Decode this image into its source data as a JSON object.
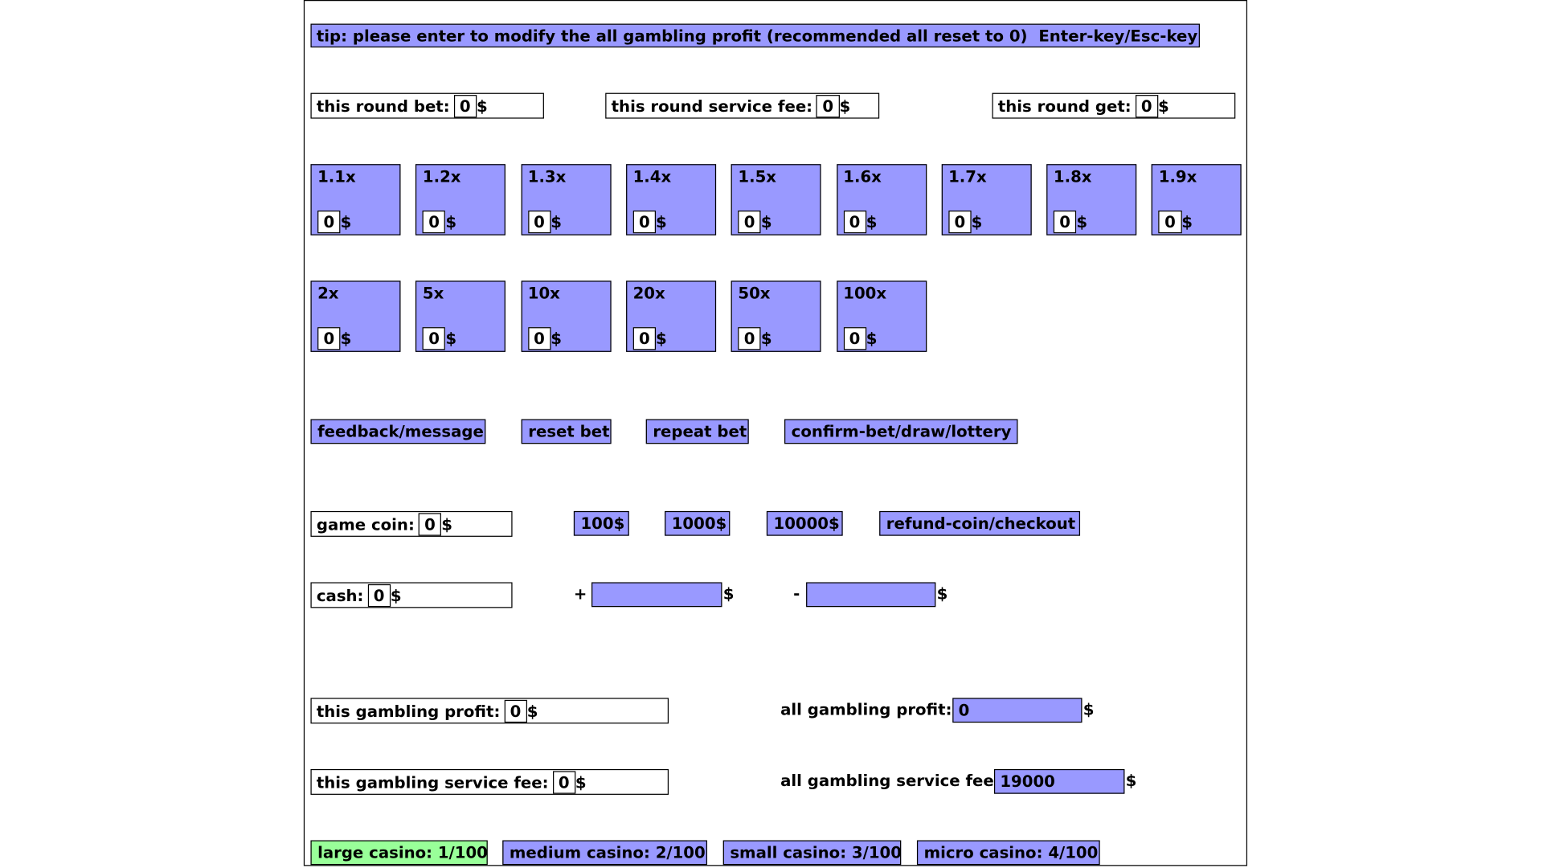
{
  "colors": {
    "accent": "#9999ff",
    "selected": "#99ff99"
  },
  "tip": {
    "text": "tip: please enter to modify the all gambling profit (recommended all reset to 0)",
    "keys": "Enter-key/Esc-key"
  },
  "round": {
    "bet_label": "this round bet:",
    "bet_value": "0",
    "fee_label": "this round service fee:",
    "fee_value": "0",
    "get_label": "this round get:",
    "get_value": "0",
    "currency": "$"
  },
  "multipliers": [
    {
      "label": "1.1x",
      "value": "0"
    },
    {
      "label": "1.2x",
      "value": "0"
    },
    {
      "label": "1.3x",
      "value": "0"
    },
    {
      "label": "1.4x",
      "value": "0"
    },
    {
      "label": "1.5x",
      "value": "0"
    },
    {
      "label": "1.6x",
      "value": "0"
    },
    {
      "label": "1.7x",
      "value": "0"
    },
    {
      "label": "1.8x",
      "value": "0"
    },
    {
      "label": "1.9x",
      "value": "0"
    },
    {
      "label": "2x",
      "value": "0"
    },
    {
      "label": "5x",
      "value": "0"
    },
    {
      "label": "10x",
      "value": "0"
    },
    {
      "label": "20x",
      "value": "0"
    },
    {
      "label": "50x",
      "value": "0"
    },
    {
      "label": "100x",
      "value": "0"
    }
  ],
  "actions": {
    "feedback": "feedback/message",
    "reset": "reset bet",
    "repeat": "repeat bet",
    "confirm": "confirm-bet/draw/lottery"
  },
  "coin": {
    "label": "game coin:",
    "value": "0",
    "b100": "100$",
    "b1000": "1000$",
    "b10000": "10000$",
    "refund": "refund-coin/checkout"
  },
  "cash": {
    "label": "cash:",
    "value": "0",
    "plus": "+",
    "minus": "-",
    "plus_value": "",
    "minus_value": ""
  },
  "profit": {
    "this_label": "this gambling profit:",
    "this_value": "0",
    "all_label": "all gambling profit:",
    "all_value": "0",
    "this_fee_label": "this gambling service fee:",
    "this_fee_value": "0",
    "all_fee_label": "all gambling service fee:",
    "all_fee_value": "19000"
  },
  "casinos": [
    {
      "label": "large casino: 1/100",
      "selected": true
    },
    {
      "label": "medium casino: 2/100",
      "selected": false
    },
    {
      "label": "small casino: 3/100",
      "selected": false
    },
    {
      "label": "micro casino: 4/100",
      "selected": false
    }
  ]
}
